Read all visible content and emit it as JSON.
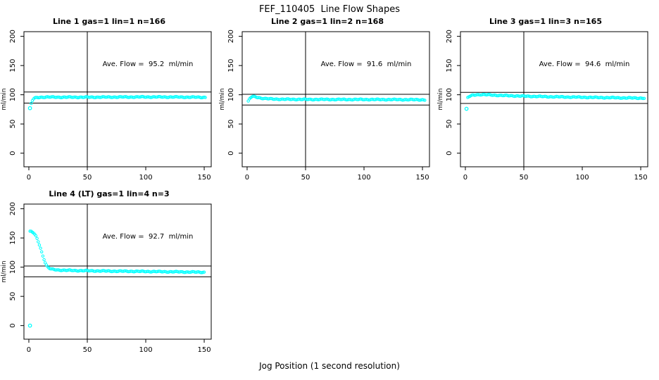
{
  "title": "FEF_110405  Line Flow Shapes",
  "xlabel": "Jog Position (1 second resolution)",
  "colors": {
    "marker": "#00FFFF",
    "line": "#000000",
    "background": "#ffffff",
    "text": "#000000"
  },
  "chart_data": [
    {
      "type": "scatter",
      "title": "Line 1 gas=1 lin=1 n=166",
      "ylabel": "ml/min",
      "annotation": "Ave. Flow =  95.2  ml/min",
      "avg_flow_ml_min": 95.2,
      "n": 166,
      "xticks": [
        0,
        50,
        100,
        150
      ],
      "yticks": [
        0,
        50,
        100,
        150,
        200
      ],
      "xlim": [
        -4.2,
        156
      ],
      "ylim": [
        -23.3,
        208
      ],
      "vline_x": 50,
      "hlines_y": [
        104.7,
        85.7
      ],
      "x_step": 1,
      "band_anchors": [
        [
          2,
          84.5
        ],
        [
          3,
          90
        ],
        [
          4,
          93
        ],
        [
          5,
          94.3
        ],
        [
          7,
          95.2
        ],
        [
          10,
          95.7
        ],
        [
          15,
          96
        ],
        [
          30,
          95.8
        ],
        [
          50,
          95.8
        ],
        [
          70,
          96
        ],
        [
          100,
          96.2
        ],
        [
          130,
          96
        ],
        [
          151,
          95.6
        ]
      ],
      "outliers": [
        [
          1,
          77
        ]
      ]
    },
    {
      "type": "scatter",
      "title": "Line 2 gas=1 lin=2 n=168",
      "ylabel": "ml/min",
      "annotation": "Ave. Flow =  91.6  ml/min",
      "avg_flow_ml_min": 91.6,
      "n": 168,
      "xticks": [
        0,
        50,
        100,
        150
      ],
      "yticks": [
        0,
        50,
        100,
        150,
        200
      ],
      "xlim": [
        -4.2,
        156
      ],
      "ylim": [
        -23.3,
        208
      ],
      "vline_x": 50,
      "hlines_y": [
        100.8,
        82.4
      ],
      "x_step": 1,
      "band_anchors": [
        [
          1,
          88.5
        ],
        [
          2,
          92.5
        ],
        [
          3,
          95
        ],
        [
          4,
          96.5
        ],
        [
          5,
          97
        ],
        [
          7,
          96.5
        ],
        [
          9,
          95.5
        ],
        [
          12,
          94.3
        ],
        [
          15,
          93.5
        ],
        [
          20,
          92.8
        ],
        [
          30,
          92.3
        ],
        [
          50,
          92
        ],
        [
          80,
          91.9
        ],
        [
          120,
          91.8
        ],
        [
          152,
          91.4
        ]
      ],
      "outliers": []
    },
    {
      "type": "scatter",
      "title": "Line 3 gas=1 lin=3 n=165",
      "ylabel": "ml/min",
      "annotation": "Ave. Flow =  94.6  ml/min",
      "avg_flow_ml_min": 94.6,
      "n": 165,
      "xticks": [
        0,
        50,
        100,
        150
      ],
      "yticks": [
        0,
        50,
        100,
        150,
        200
      ],
      "xlim": [
        -4.2,
        156
      ],
      "ylim": [
        -23.3,
        208
      ],
      "vline_x": 50,
      "hlines_y": [
        104.1,
        85.1
      ],
      "x_step": 1,
      "band_anchors": [
        [
          2,
          95
        ],
        [
          3,
          96.5
        ],
        [
          4,
          97.5
        ],
        [
          6,
          99
        ],
        [
          9,
          100
        ],
        [
          13,
          100.3
        ],
        [
          20,
          99.8
        ],
        [
          30,
          98.8
        ],
        [
          40,
          98.2
        ],
        [
          50,
          97.6
        ],
        [
          70,
          96.7
        ],
        [
          100,
          95.7
        ],
        [
          130,
          94.8
        ],
        [
          153,
          94.2
        ]
      ],
      "outliers": [
        [
          1,
          76
        ]
      ]
    },
    {
      "type": "scatter",
      "title": "Line 4 (LT) gas=1 lin=4 n=3",
      "ylabel": "ml/min",
      "annotation": "Ave. Flow =  92.7  ml/min",
      "avg_flow_ml_min": 92.7,
      "n": 3,
      "xticks": [
        0,
        50,
        100,
        150
      ],
      "yticks": [
        0,
        50,
        100,
        150,
        200
      ],
      "xlim": [
        -4.2,
        156
      ],
      "ylim": [
        -23.3,
        208
      ],
      "vline_x": 50,
      "hlines_y": [
        102.0,
        83.4
      ],
      "x_step": 1,
      "band_anchors": [
        [
          1,
          161
        ],
        [
          2,
          161
        ],
        [
          3,
          160
        ],
        [
          4,
          158.5
        ],
        [
          5,
          156
        ],
        [
          6,
          153
        ],
        [
          7,
          149
        ],
        [
          8,
          144
        ],
        [
          9,
          138.5
        ],
        [
          10,
          132.5
        ],
        [
          11,
          126
        ],
        [
          12,
          119.5
        ],
        [
          13,
          113.5
        ],
        [
          14,
          108
        ],
        [
          15,
          103.5
        ],
        [
          16,
          100.5
        ],
        [
          17,
          98.7
        ],
        [
          18,
          97.5
        ],
        [
          19,
          96.7
        ],
        [
          20,
          96.2
        ],
        [
          25,
          95.2
        ],
        [
          30,
          94.7
        ],
        [
          40,
          94.2
        ],
        [
          50,
          93.8
        ],
        [
          70,
          93.2
        ],
        [
          100,
          92.6
        ],
        [
          125,
          92
        ],
        [
          150,
          91.3
        ]
      ],
      "outliers": [
        [
          1,
          0
        ]
      ]
    }
  ]
}
